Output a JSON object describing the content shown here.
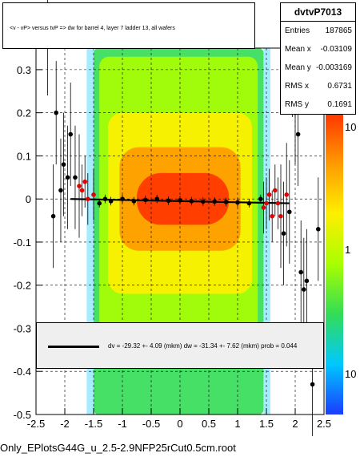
{
  "title": "<v - vP>       versus  tvP =>  dw for barrel 4, layer 7 ladder 13, all wafers",
  "stats": {
    "name": "dvtvP7013",
    "rows": [
      {
        "label": "Entries",
        "value": "187865"
      },
      {
        "label": "Mean x",
        "value": "-0.03109"
      },
      {
        "label": "Mean y",
        "value": "-0.003169"
      },
      {
        "label": "RMS x",
        "value": "0.6731"
      },
      {
        "label": "RMS y",
        "value": "0.1691"
      }
    ]
  },
  "fit_text": "dv =  -29.32 +-  4.09 (mkm) dw =  -31.34 +-  7.62 (mkm) prob = 0.044",
  "footer": "Only_EPlotsG44G_u_2.5-2.9NFP25rCut0.5cm.root",
  "colors": {
    "palette": [
      "#1a3cff",
      "#00c8ff",
      "#33dd55",
      "#aaff00",
      "#ffee00",
      "#ff9900",
      "#ff3300"
    ]
  },
  "chart_data": {
    "type": "heatmap",
    "xlim": [
      -2.5,
      2.5
    ],
    "ylim": [
      -0.5,
      0.35
    ],
    "x_ticks": [
      "-2.5",
      "-2",
      "-1.5",
      "-1",
      "-0.5",
      "0",
      "0.5",
      "1",
      "1.5",
      "2",
      "2.5"
    ],
    "y_ticks": [
      "-0.5",
      "-0.4",
      "-0.3",
      "-0.2",
      "-0.1",
      "0",
      "0.1",
      "0.2",
      "0.3"
    ],
    "z_scale": "log",
    "z_ticks": [
      "1",
      "10",
      "10"
    ],
    "grid": true,
    "profile_points": [
      {
        "x": -2.3,
        "y": 0.36
      },
      {
        "x": -2.2,
        "y": -0.04
      },
      {
        "x": -2.15,
        "y": 0.2
      },
      {
        "x": -2.07,
        "y": 0.02
      },
      {
        "x": -2.02,
        "y": 0.08
      },
      {
        "x": -1.95,
        "y": 0.05
      },
      {
        "x": -1.9,
        "y": 0.15
      },
      {
        "x": -1.82,
        "y": 0.05
      },
      {
        "x": -1.75,
        "y": 0.03
      },
      {
        "x": -1.7,
        "y": 0.02
      },
      {
        "x": -1.65,
        "y": 0.04
      },
      {
        "x": -1.6,
        "y": 0.0
      },
      {
        "x": -1.5,
        "y": 0.01
      },
      {
        "x": -1.4,
        "y": -0.01
      },
      {
        "x": -1.3,
        "y": 0.0
      },
      {
        "x": -1.2,
        "y": -0.005
      },
      {
        "x": -1.0,
        "y": 0.0
      },
      {
        "x": -0.8,
        "y": -0.005
      },
      {
        "x": -0.6,
        "y": -0.002
      },
      {
        "x": -0.4,
        "y": 0.0
      },
      {
        "x": -0.2,
        "y": -0.004
      },
      {
        "x": 0.0,
        "y": -0.003
      },
      {
        "x": 0.2,
        "y": -0.005
      },
      {
        "x": 0.4,
        "y": -0.006
      },
      {
        "x": 0.6,
        "y": -0.006
      },
      {
        "x": 0.8,
        "y": -0.007
      },
      {
        "x": 1.0,
        "y": -0.008
      },
      {
        "x": 1.2,
        "y": -0.01
      },
      {
        "x": 1.4,
        "y": 0.0
      },
      {
        "x": 1.45,
        "y": -0.02
      },
      {
        "x": 1.5,
        "y": -0.01
      },
      {
        "x": 1.55,
        "y": 0.01
      },
      {
        "x": 1.6,
        "y": -0.04
      },
      {
        "x": 1.65,
        "y": 0.02
      },
      {
        "x": 1.7,
        "y": -0.01
      },
      {
        "x": 1.75,
        "y": -0.04
      },
      {
        "x": 1.8,
        "y": -0.08
      },
      {
        "x": 1.85,
        "y": 0.01
      },
      {
        "x": 1.9,
        "y": -0.03
      },
      {
        "x": 1.95,
        "y": 0.31
      },
      {
        "x": 2.0,
        "y": 0.2
      },
      {
        "x": 2.05,
        "y": 0.15
      },
      {
        "x": 2.1,
        "y": -0.17
      },
      {
        "x": 2.15,
        "y": -0.21
      },
      {
        "x": 2.2,
        "y": -0.19
      },
      {
        "x": 2.4,
        "y": -0.07
      },
      {
        "x": 2.3,
        "y": -0.43
      }
    ],
    "fit_line": [
      {
        "x": -1.9,
        "y": 0.0
      },
      {
        "x": 1.9,
        "y": -0.01
      }
    ]
  }
}
